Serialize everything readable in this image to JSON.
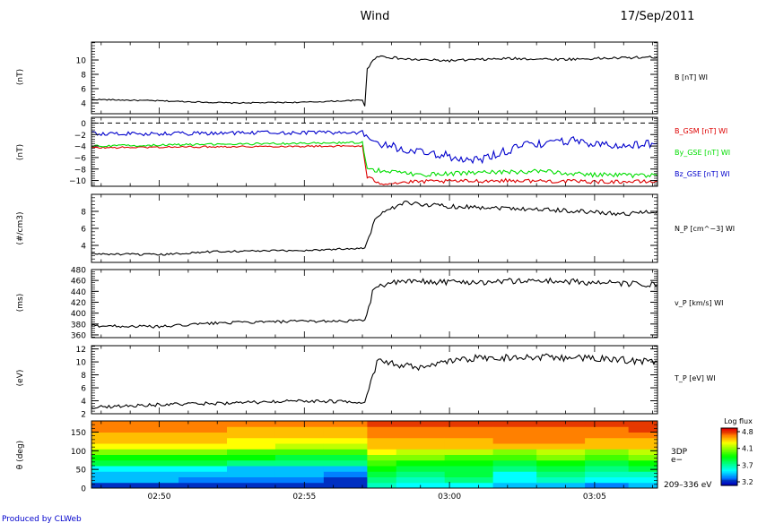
{
  "header": {
    "spacecraft": "Wind",
    "date": "17/Sep/2011"
  },
  "footer": {
    "credit": "Produced by CLWeb"
  },
  "time_axis": {
    "start": "02:47:40",
    "end": "03:07:10",
    "tick_labels": [
      "02:50",
      "02:55",
      "03:00",
      "03:05"
    ]
  },
  "colorbar": {
    "title": "Log flux",
    "ticks": [
      "4.8",
      "4.1",
      "3.7",
      "3.2"
    ],
    "range": [
      3.2,
      4.8
    ]
  },
  "chart_data": [
    {
      "type": "line",
      "ylabel": "(nT)",
      "ylim": [
        2.5,
        12.5
      ],
      "yticks": [
        4,
        6,
        8,
        10
      ],
      "ytick_labels": [
        "4",
        "6",
        "8",
        "10"
      ],
      "shock_time": "02:57:10",
      "series": [
        {
          "name": "B [nT] WI",
          "color": "#000000",
          "points": [
            [
              "02:47:40",
              4.5
            ],
            [
              "02:50:00",
              4.3
            ],
            [
              "02:52:30",
              4.0
            ],
            [
              "02:55:00",
              4.1
            ],
            [
              "02:57:00",
              4.4
            ],
            [
              "02:57:05",
              3.6
            ],
            [
              "02:57:10",
              8.8
            ],
            [
              "02:57:30",
              10.6
            ],
            [
              "02:58:30",
              10.1
            ],
            [
              "03:00:00",
              9.9
            ],
            [
              "03:02:00",
              10.2
            ],
            [
              "03:04:00",
              10.1
            ],
            [
              "03:06:00",
              10.3
            ],
            [
              "03:07:10",
              10.4
            ]
          ]
        }
      ]
    },
    {
      "type": "line",
      "ylabel": "(nT)",
      "ylim": [
        -11,
        1
      ],
      "yticks": [
        0,
        -2,
        -4,
        -6,
        -8,
        -10
      ],
      "ytick_labels": [
        "0",
        "−2",
        "−4",
        "−6",
        "−8",
        "−10"
      ],
      "shock_time": "02:57:10",
      "zero_line": true,
      "series": [
        {
          "name": "B_GSM [nT] WI",
          "color": "#dd0000",
          "points": [
            [
              "02:47:40",
              -4.3
            ],
            [
              "02:52:00",
              -4.1
            ],
            [
              "02:57:00",
              -4.0
            ],
            [
              "02:57:10",
              -9.5
            ],
            [
              "02:57:40",
              -10.5
            ],
            [
              "02:59:00",
              -10.2
            ],
            [
              "03:02:00",
              -10.0
            ],
            [
              "03:05:00",
              -10.2
            ],
            [
              "03:07:10",
              -10.2
            ]
          ]
        },
        {
          "name": "By_GSE [nT] WI",
          "color": "#00dd00",
          "points": [
            [
              "02:47:40",
              -4.0
            ],
            [
              "02:52:00",
              -3.7
            ],
            [
              "02:57:00",
              -3.4
            ],
            [
              "02:57:10",
              -8.0
            ],
            [
              "02:59:00",
              -9.0
            ],
            [
              "03:01:00",
              -8.6
            ],
            [
              "03:03:00",
              -8.4
            ],
            [
              "03:05:00",
              -9.0
            ],
            [
              "03:07:10",
              -9.2
            ]
          ]
        },
        {
          "name": "Bz_GSE [nT] WI",
          "color": "#0000cc",
          "points": [
            [
              "02:47:40",
              -1.8
            ],
            [
              "02:50:00",
              -1.9
            ],
            [
              "02:53:00",
              -1.7
            ],
            [
              "02:57:00",
              -1.6
            ],
            [
              "02:57:20",
              -3.5
            ],
            [
              "02:59:00",
              -5.0
            ],
            [
              "03:01:00",
              -6.5
            ],
            [
              "03:02:30",
              -4.0
            ],
            [
              "03:04:00",
              -3.0
            ],
            [
              "03:06:00",
              -4.0
            ],
            [
              "03:07:10",
              -3.5
            ]
          ]
        }
      ]
    },
    {
      "type": "line",
      "ylabel": "(#/cm3)",
      "ylim": [
        2,
        10
      ],
      "yticks": [
        4,
        6,
        8
      ],
      "ytick_labels": [
        "4",
        "6",
        "8"
      ],
      "shock_time": "02:57:15",
      "series": [
        {
          "name": "N_P [cm^−3] WI",
          "color": "#000000",
          "points": [
            [
              "02:47:40",
              3.0
            ],
            [
              "02:50:00",
              2.9
            ],
            [
              "02:52:00",
              3.3
            ],
            [
              "02:55:00",
              3.4
            ],
            [
              "02:57:05",
              3.7
            ],
            [
              "02:57:30",
              7.5
            ],
            [
              "02:58:30",
              9.0
            ],
            [
              "03:00:00",
              8.6
            ],
            [
              "03:02:00",
              8.4
            ],
            [
              "03:04:00",
              8.1
            ],
            [
              "03:06:00",
              7.7
            ],
            [
              "03:07:10",
              8.0
            ]
          ]
        }
      ]
    },
    {
      "type": "line",
      "ylabel": "(ms)",
      "ylim": [
        355,
        480
      ],
      "yticks": [
        360,
        380,
        400,
        420,
        440,
        460,
        480
      ],
      "ytick_labels": [
        "360",
        "380",
        "400",
        "420",
        "440",
        "460",
        "480"
      ],
      "shock_time": "02:57:15",
      "series": [
        {
          "name": "v_P [km/s] WI",
          "color": "#000000",
          "points": [
            [
              "02:47:40",
              377
            ],
            [
              "02:50:00",
              375
            ],
            [
              "02:52:00",
              382
            ],
            [
              "02:55:00",
              385
            ],
            [
              "02:57:05",
              386
            ],
            [
              "02:57:25",
              450
            ],
            [
              "02:58:30",
              458
            ],
            [
              "03:01:00",
              457
            ],
            [
              "03:03:00",
              460
            ],
            [
              "03:05:00",
              456
            ],
            [
              "03:07:10",
              452
            ]
          ]
        }
      ]
    },
    {
      "type": "line",
      "ylabel": "(eV)",
      "ylim": [
        2,
        12.5
      ],
      "yticks": [
        2,
        4,
        6,
        8,
        10,
        12
      ],
      "ytick_labels": [
        "2",
        "4",
        "6",
        "8",
        "10",
        "12"
      ],
      "shock_time": "02:57:15",
      "series": [
        {
          "name": "T_P [eV] WI",
          "color": "#000000",
          "points": [
            [
              "02:47:40",
              3.0
            ],
            [
              "02:50:00",
              3.4
            ],
            [
              "02:53:00",
              3.7
            ],
            [
              "02:55:00",
              4.0
            ],
            [
              "02:57:05",
              3.8
            ],
            [
              "02:57:30",
              10.0
            ],
            [
              "02:59:00",
              9.0
            ],
            [
              "03:00:30",
              10.5
            ],
            [
              "03:03:00",
              10.8
            ],
            [
              "03:05:00",
              10.5
            ],
            [
              "03:07:10",
              10.0
            ]
          ]
        }
      ]
    },
    {
      "type": "heatmap",
      "ylabel": "θ (deg)",
      "ylim": [
        0,
        180
      ],
      "yticks": [
        0,
        50,
        100,
        150
      ],
      "ytick_labels": [
        "0",
        "50",
        "100",
        "150"
      ],
      "right_labels": [
        "3DP",
        "e−",
        "209–336 eV"
      ],
      "time_bins": [
        "02:47:40",
        "02:49:10",
        "02:50:40",
        "02:52:20",
        "02:54:00",
        "02:55:40",
        "02:57:10",
        "02:58:10",
        "02:59:50",
        "03:01:30",
        "03:03:00",
        "03:04:40",
        "03:06:10",
        "03:07:10"
      ],
      "theta_bins": [
        0,
        15,
        30,
        45,
        60,
        75,
        90,
        105,
        120,
        135,
        150,
        165,
        180
      ],
      "log_flux": [
        [
          3.3,
          3.5,
          3.5,
          3.6,
          3.9,
          4.0,
          4.2,
          4.4,
          4.5,
          4.5,
          4.6,
          4.6
        ],
        [
          3.3,
          3.5,
          3.5,
          3.6,
          3.9,
          4.0,
          4.2,
          4.4,
          4.5,
          4.5,
          4.6,
          4.6
        ],
        [
          3.3,
          3.4,
          3.5,
          3.6,
          3.9,
          4.0,
          4.2,
          4.4,
          4.5,
          4.5,
          4.6,
          4.6
        ],
        [
          3.3,
          3.4,
          3.5,
          3.5,
          3.8,
          4.0,
          4.1,
          4.4,
          4.4,
          4.5,
          4.5,
          4.6
        ],
        [
          3.3,
          3.4,
          3.5,
          3.5,
          3.8,
          3.9,
          4.1,
          4.3,
          4.4,
          4.5,
          4.5,
          4.6
        ],
        [
          3.3,
          3.3,
          3.4,
          3.5,
          3.8,
          3.9,
          4.1,
          4.3,
          4.4,
          4.5,
          4.5,
          4.6
        ],
        [
          3.7,
          3.8,
          3.9,
          4.0,
          4.1,
          4.2,
          4.4,
          4.5,
          4.5,
          4.6,
          4.6,
          4.7
        ],
        [
          3.6,
          3.7,
          3.8,
          3.9,
          4.0,
          4.2,
          4.3,
          4.5,
          4.5,
          4.6,
          4.6,
          4.7
        ],
        [
          3.6,
          3.8,
          3.9,
          3.9,
          4.0,
          4.1,
          4.3,
          4.5,
          4.5,
          4.6,
          4.6,
          4.7
        ],
        [
          3.5,
          3.6,
          3.6,
          3.8,
          3.9,
          4.1,
          4.2,
          4.5,
          4.6,
          4.6,
          4.6,
          4.7
        ],
        [
          3.5,
          3.7,
          3.8,
          3.9,
          4.0,
          4.2,
          4.3,
          4.5,
          4.6,
          4.6,
          4.6,
          4.7
        ],
        [
          3.4,
          3.6,
          3.7,
          3.8,
          3.9,
          4.1,
          4.2,
          4.5,
          4.5,
          4.6,
          4.6,
          4.7
        ],
        [
          3.5,
          3.6,
          3.7,
          3.9,
          4.0,
          4.2,
          4.3,
          4.5,
          4.5,
          4.6,
          4.7,
          4.7
        ]
      ]
    }
  ]
}
